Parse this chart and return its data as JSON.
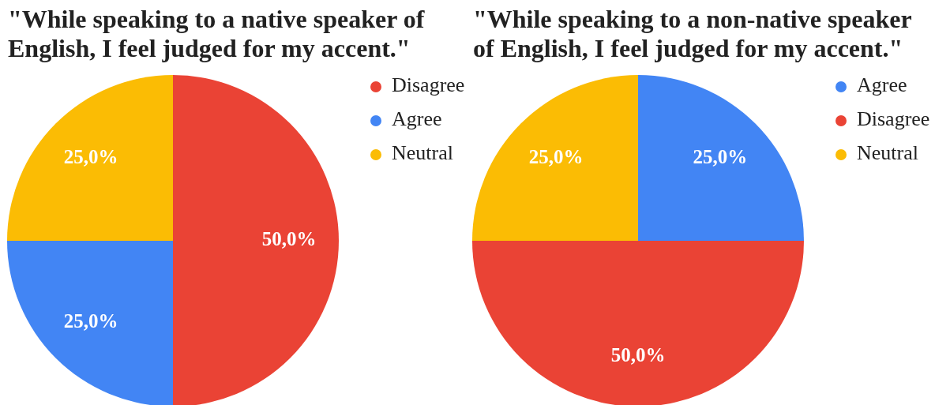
{
  "chart_data": [
    {
      "type": "pie",
      "title": "\"While speaking to a native speaker of English, I feel judged for my accent.\"",
      "categories": [
        "Disagree",
        "Agree",
        "Neutral"
      ],
      "values": [
        50,
        25,
        25
      ],
      "colors": [
        "#ea4335",
        "#4285f4",
        "#fbbc04"
      ],
      "value_labels": [
        "50,0%",
        "25,0%",
        "25,0%"
      ],
      "legend": "right"
    },
    {
      "type": "pie",
      "title": "\"While speaking to a non-native speaker of English, I feel judged for my accent.\"",
      "categories": [
        "Agree",
        "Disagree",
        "Neutral"
      ],
      "values": [
        25,
        50,
        25
      ],
      "colors": [
        "#4285f4",
        "#ea4335",
        "#fbbc04"
      ],
      "value_labels": [
        "25,0%",
        "50,0%",
        "25,0%"
      ],
      "legend": "right"
    }
  ]
}
